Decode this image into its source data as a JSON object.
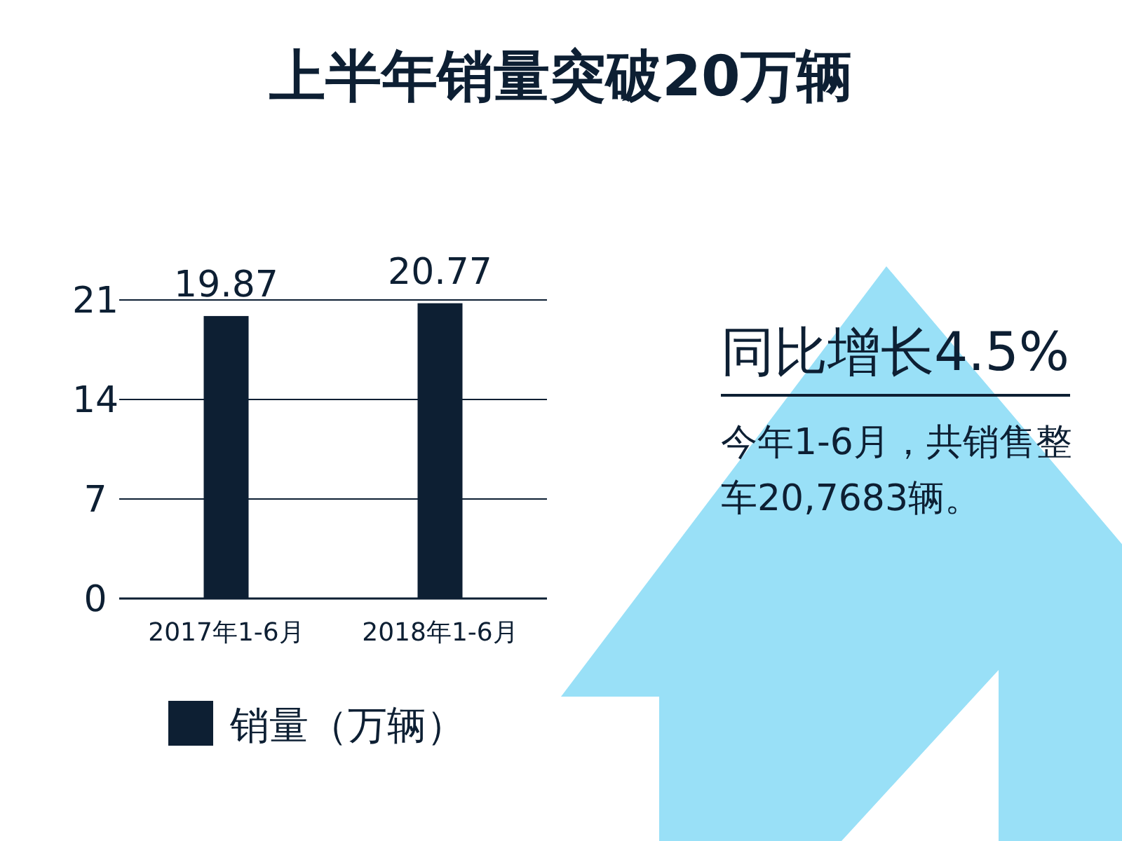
{
  "chart_data": {
    "type": "bar",
    "title": "上半年销量突破20万辆",
    "categories": [
      "2017年1-6月",
      "2018年1-6月"
    ],
    "series": [
      {
        "name": "销量（万辆）",
        "color": "#0d1f33",
        "values": [
          19.87,
          20.77
        ]
      }
    ],
    "ylim": [
      0,
      21
    ],
    "yticks": [
      0,
      7,
      14,
      21
    ],
    "grid": "y",
    "data_labels": true,
    "legend": "bottom",
    "annotations": [
      "同比增长4.5%",
      "今年1-6月，共销售整车20,7683辆。"
    ]
  }
}
